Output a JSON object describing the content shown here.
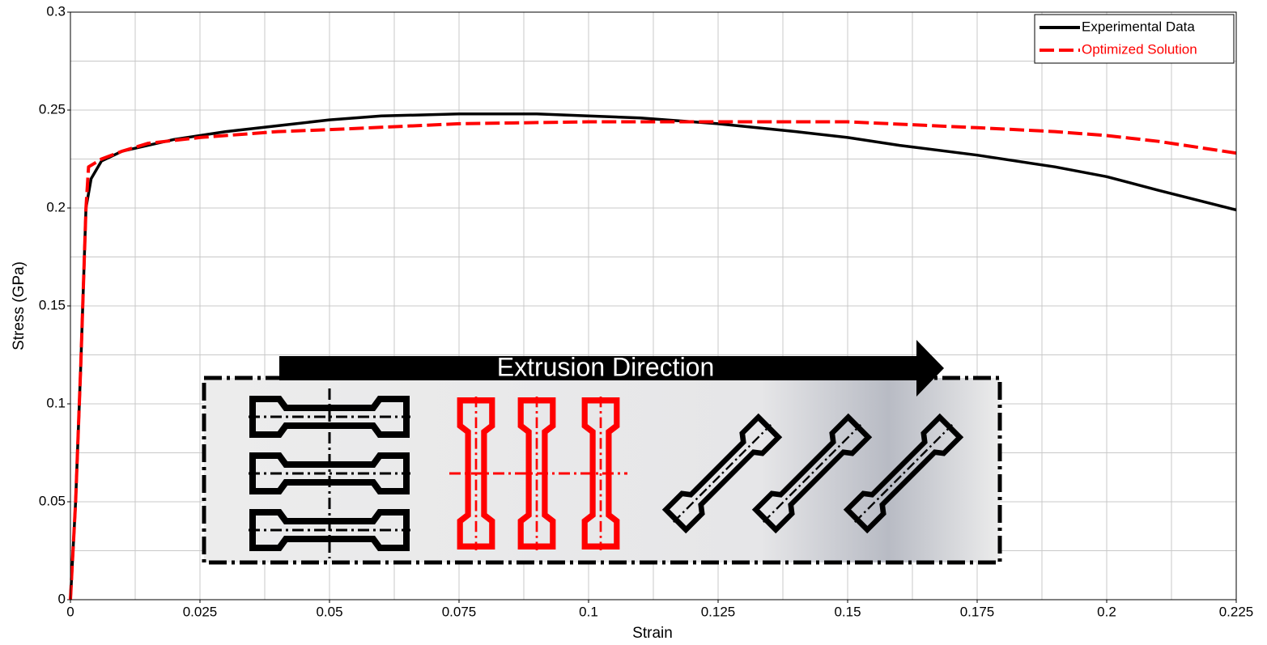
{
  "chart_data": {
    "type": "line",
    "xlabel": "Strain",
    "ylabel": "Stress (GPa)",
    "annotation": "Extrusion Direction",
    "xlim": [
      0,
      0.225
    ],
    "ylim": [
      0,
      0.3
    ],
    "xticks": [
      0,
      0.025,
      0.05,
      0.075,
      0.1,
      0.125,
      0.15,
      0.175,
      0.2,
      0.225
    ],
    "yticks": [
      0,
      0.05,
      0.1,
      0.15,
      0.2,
      0.25,
      0.3
    ],
    "grid": true,
    "minor_grid": true,
    "legend": "upper right",
    "series": [
      {
        "name": "Experimental Data",
        "color": "#000000",
        "dash": false,
        "x": [
          0,
          0.001,
          0.002,
          0.003,
          0.004,
          0.006,
          0.01,
          0.015,
          0.02,
          0.03,
          0.04,
          0.05,
          0.06,
          0.075,
          0.09,
          0.1,
          0.11,
          0.125,
          0.14,
          0.15,
          0.16,
          0.175,
          0.19,
          0.2,
          0.21,
          0.225
        ],
        "values": [
          0,
          0.05,
          0.12,
          0.2,
          0.215,
          0.224,
          0.229,
          0.232,
          0.235,
          0.239,
          0.242,
          0.245,
          0.247,
          0.248,
          0.248,
          0.247,
          0.246,
          0.243,
          0.239,
          0.236,
          0.232,
          0.227,
          0.221,
          0.216,
          0.209,
          0.199
        ]
      },
      {
        "name": "Optimized Solution",
        "color": "#ff0000",
        "dash": true,
        "x": [
          0,
          0.001,
          0.002,
          0.003,
          0.0035,
          0.006,
          0.01,
          0.015,
          0.025,
          0.04,
          0.05,
          0.075,
          0.1,
          0.125,
          0.15,
          0.175,
          0.19,
          0.2,
          0.21,
          0.225
        ],
        "values": [
          0,
          0.05,
          0.12,
          0.2,
          0.221,
          0.225,
          0.229,
          0.233,
          0.236,
          0.239,
          0.24,
          0.243,
          0.244,
          0.244,
          0.244,
          0.241,
          0.239,
          0.237,
          0.234,
          0.228
        ]
      }
    ]
  }
}
